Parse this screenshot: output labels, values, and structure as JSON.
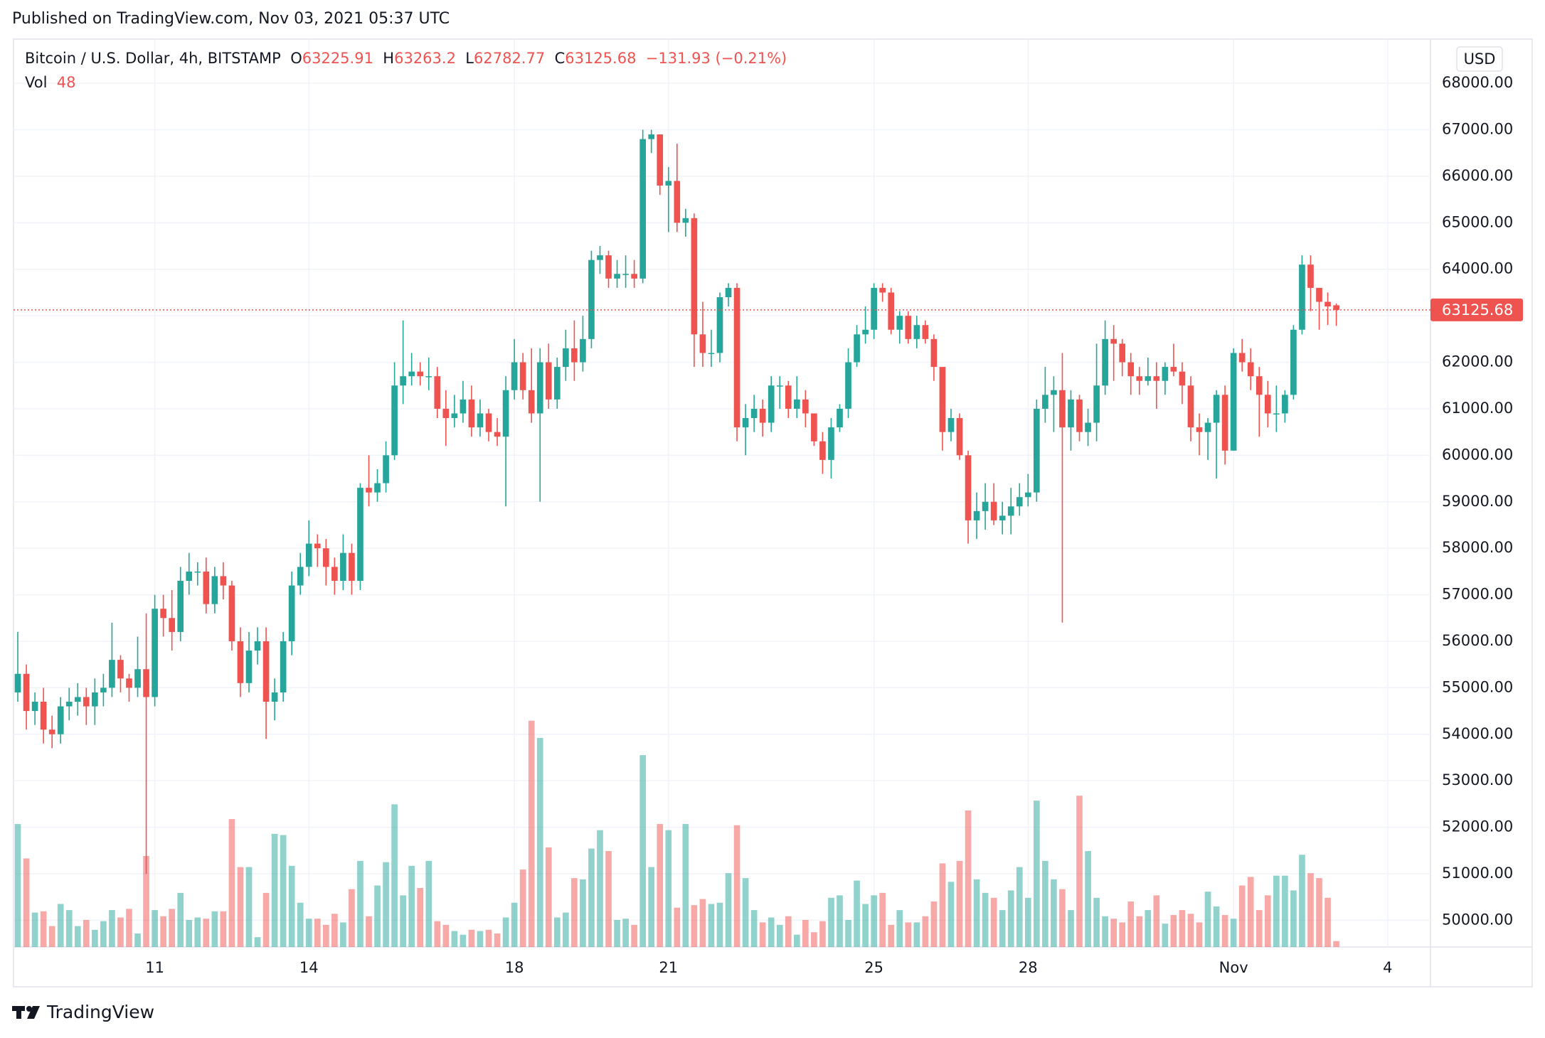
{
  "published": "Published on TradingView.com, Nov 03, 2021 05:37 UTC",
  "chart_data": {
    "type": "candlestick",
    "symbol": "Bitcoin / U.S. Dollar, 4h, BITSTAMP",
    "ohlc_labels": [
      "O",
      "H",
      "L",
      "C"
    ],
    "change": "−131.93 (−0.21%)",
    "volume_label": "Vol",
    "currency": "USD",
    "open": [
      54900,
      55300,
      54500,
      54700,
      54100,
      54000,
      54600,
      54700,
      54800,
      54600,
      54900,
      55000,
      55600,
      55200,
      55000,
      55400,
      54800,
      56700,
      56500,
      56200,
      57300,
      57500,
      57500,
      56800,
      57400,
      57200,
      56000,
      55100,
      55800,
      56000,
      54700,
      54900,
      56000,
      57200,
      57600,
      58100,
      58000,
      57600,
      57300,
      57900,
      57300,
      59300,
      59200,
      59400,
      60000,
      61500,
      61700,
      61800,
      61700,
      61700,
      61000,
      60800,
      60900,
      61200,
      60600,
      60900,
      60500,
      60400,
      61400,
      62000,
      61400,
      60900,
      62000,
      61200,
      61900,
      62300,
      62000,
      62500,
      64200,
      64300,
      63800,
      63900,
      63900,
      63800,
      66800,
      66900,
      65800,
      65900,
      65000,
      65100,
      62600,
      62200,
      62200,
      63400,
      63600,
      60600,
      60800,
      61000,
      60700,
      61500,
      61500,
      61000,
      61200,
      60900,
      60300,
      59900,
      60600,
      61000,
      62000,
      62600,
      62700,
      63600,
      63500,
      62700,
      63000,
      62500,
      62800,
      62500,
      61900,
      60500,
      60800,
      60000,
      58600,
      58800,
      59000,
      58600,
      58700,
      58900,
      59100,
      59200,
      61000,
      61300,
      61400,
      60600,
      61200,
      60500,
      60700,
      61500,
      62500,
      62400,
      62000,
      61700,
      61600,
      61700,
      61600,
      61900,
      61800,
      61500,
      60600,
      60500,
      60700,
      61300,
      60100,
      62200,
      62000,
      61700,
      61300,
      60900,
      60900,
      61300,
      62700,
      64100,
      63600,
      63300,
      63225.91
    ],
    "high": [
      56200,
      55500,
      54900,
      55000,
      54400,
      54800,
      55000,
      55100,
      55000,
      55200,
      55300,
      56400,
      55700,
      55300,
      56100,
      56600,
      57000,
      57000,
      57100,
      57600,
      57900,
      57700,
      57800,
      57600,
      57700,
      57300,
      56300,
      56200,
      56300,
      56300,
      55200,
      56200,
      57500,
      57900,
      58600,
      58300,
      58200,
      57800,
      58300,
      58100,
      59400,
      60000,
      59700,
      60300,
      62000,
      62900,
      62200,
      62000,
      62100,
      61900,
      61400,
      61300,
      61600,
      61500,
      61200,
      61000,
      60800,
      61700,
      62500,
      62200,
      62300,
      62300,
      62400,
      62100,
      62700,
      62900,
      63000,
      64400,
      64500,
      64400,
      64200,
      64300,
      64200,
      67000,
      67000,
      66900,
      66200,
      66700,
      65300,
      65200,
      63300,
      62700,
      63500,
      63700,
      63700,
      61100,
      61300,
      61200,
      61700,
      61700,
      61600,
      61700,
      61400,
      60900,
      60500,
      60800,
      61100,
      62300,
      62800,
      63200,
      63700,
      63700,
      63600,
      63100,
      63100,
      63000,
      62900,
      62600,
      61900,
      61000,
      60900,
      60100,
      59200,
      59400,
      59400,
      59000,
      59300,
      59400,
      59600,
      61200,
      61900,
      61700,
      62200,
      61400,
      61300,
      61000,
      62400,
      62900,
      62800,
      62500,
      62200,
      61900,
      62100,
      62000,
      62000,
      62400,
      62000,
      61700,
      60900,
      60800,
      61400,
      61500,
      62300,
      62500,
      62300,
      61900,
      61600,
      61500,
      61400,
      62800,
      64300,
      64300,
      63600,
      63500,
      63263.2
    ],
    "low": [
      54700,
      54100,
      54200,
      53800,
      53700,
      53800,
      54300,
      54400,
      54200,
      54200,
      54600,
      54800,
      54900,
      54700,
      54800,
      51000,
      54600,
      56100,
      55800,
      56000,
      57000,
      57200,
      56600,
      56600,
      56900,
      55800,
      54800,
      54900,
      55500,
      53900,
      54300,
      54700,
      55700,
      57000,
      57400,
      57600,
      57200,
      57000,
      57100,
      57000,
      57100,
      58900,
      59000,
      59200,
      59900,
      61100,
      61500,
      61500,
      61400,
      60800,
      60200,
      60600,
      60700,
      60400,
      60400,
      60300,
      60200,
      58900,
      61200,
      61200,
      60700,
      59000,
      61000,
      61000,
      61600,
      61600,
      61800,
      62300,
      63900,
      63600,
      63600,
      63600,
      63600,
      63700,
      66500,
      65600,
      64800,
      64800,
      64700,
      61900,
      61900,
      61900,
      62000,
      63200,
      60300,
      60000,
      60500,
      60400,
      60500,
      61000,
      60800,
      60800,
      60600,
      60200,
      59600,
      59500,
      60500,
      60800,
      61900,
      62400,
      62500,
      63300,
      62600,
      62400,
      62400,
      62300,
      62400,
      61600,
      60100,
      60300,
      59900,
      58100,
      58200,
      58400,
      58500,
      58300,
      58300,
      58700,
      58900,
      59000,
      60700,
      60500,
      56400,
      60100,
      60300,
      60200,
      60300,
      61300,
      61600,
      61700,
      61300,
      61300,
      61500,
      61000,
      61300,
      61700,
      61100,
      60300,
      60000,
      59900,
      59500,
      59800,
      60100,
      61800,
      61400,
      60400,
      60600,
      60500,
      60700,
      61200,
      62600,
      63100,
      62700,
      62800,
      62782.77
    ],
    "close": [
      55300,
      54500,
      54700,
      54100,
      54000,
      54600,
      54700,
      54800,
      54600,
      54900,
      55000,
      55600,
      55200,
      55000,
      55400,
      54800,
      56700,
      56500,
      56200,
      57300,
      57500,
      57500,
      56800,
      57400,
      57200,
      56000,
      55100,
      55800,
      56000,
      54700,
      54900,
      56000,
      57200,
      57600,
      58100,
      58000,
      57600,
      57300,
      57900,
      57300,
      59300,
      59200,
      59400,
      60000,
      61500,
      61700,
      61800,
      61700,
      61700,
      61000,
      60800,
      60900,
      61200,
      60600,
      60900,
      60500,
      60400,
      61400,
      62000,
      61400,
      60900,
      62000,
      61200,
      61900,
      62300,
      62000,
      62500,
      64200,
      64300,
      63800,
      63900,
      63900,
      63800,
      66800,
      66900,
      65800,
      65900,
      65000,
      65100,
      62600,
      62200,
      62200,
      63400,
      63600,
      60600,
      60800,
      61000,
      60700,
      61500,
      61500,
      61000,
      61200,
      60900,
      60300,
      59900,
      60600,
      61000,
      62000,
      62600,
      62700,
      63600,
      63500,
      62700,
      63000,
      62500,
      62800,
      62500,
      61900,
      60500,
      60800,
      60000,
      58600,
      58800,
      59000,
      58600,
      58700,
      58900,
      59100,
      59200,
      61000,
      61300,
      61400,
      60600,
      61200,
      60500,
      60700,
      61500,
      62500,
      62400,
      62000,
      61700,
      61600,
      61700,
      61600,
      61900,
      61800,
      61500,
      60600,
      60500,
      60700,
      61300,
      60100,
      62200,
      62000,
      61700,
      61300,
      60900,
      60900,
      61300,
      62700,
      64100,
      63600,
      63300,
      63200,
      63125.68
    ],
    "volume": [
      1000,
      720,
      280,
      290,
      170,
      350,
      300,
      170,
      220,
      140,
      210,
      300,
      240,
      310,
      110,
      740,
      300,
      250,
      310,
      440,
      220,
      240,
      230,
      290,
      290,
      1040,
      650,
      650,
      80,
      440,
      920,
      910,
      660,
      360,
      230,
      230,
      180,
      270,
      200,
      470,
      700,
      250,
      500,
      690,
      1160,
      420,
      660,
      480,
      700,
      210,
      180,
      130,
      100,
      140,
      130,
      140,
      110,
      240,
      360,
      630,
      1840,
      1700,
      810,
      240,
      280,
      560,
      550,
      800,
      950,
      780,
      220,
      230,
      180,
      1560,
      650,
      1000,
      950,
      320,
      1000,
      340,
      390,
      350,
      360,
      600,
      990,
      560,
      300,
      200,
      240,
      180,
      250,
      100,
      220,
      120,
      210,
      400,
      420,
      220,
      540,
      350,
      420,
      440,
      180,
      300,
      200,
      200,
      250,
      370,
      680,
      530,
      700,
      1110,
      550,
      440,
      400,
      300,
      460,
      650,
      400,
      1190,
      700,
      550,
      470,
      300,
      1230,
      780,
      400,
      250,
      230,
      200,
      370,
      250,
      300,
      420,
      190,
      260,
      300,
      270,
      200,
      450,
      330,
      260,
      230,
      500,
      570,
      300,
      420,
      580,
      580,
      460,
      750,
      600,
      560,
      400,
      48
    ],
    "up_color": "#26a69a",
    "down_color": "#ef5350",
    "ylim": [
      49425,
      68950
    ],
    "yticks": [
      {
        "value": 50000,
        "label": "50000.00"
      },
      {
        "value": 51000,
        "label": "51000.00"
      },
      {
        "value": 52000,
        "label": "52000.00"
      },
      {
        "value": 53000,
        "label": "53000.00"
      },
      {
        "value": 54000,
        "label": "54000.00"
      },
      {
        "value": 55000,
        "label": "55000.00"
      },
      {
        "value": 56000,
        "label": "56000.00"
      },
      {
        "value": 57000,
        "label": "57000.00"
      },
      {
        "value": 58000,
        "label": "58000.00"
      },
      {
        "value": 59000,
        "label": "59000.00"
      },
      {
        "value": 60000,
        "label": "60000.00"
      },
      {
        "value": 61000,
        "label": "61000.00"
      },
      {
        "value": 62000,
        "label": "62000.00"
      },
      {
        "value": 63000,
        "label": "63000.00"
      },
      {
        "value": 64000,
        "label": "64000.00"
      },
      {
        "value": 65000,
        "label": "65000.00"
      },
      {
        "value": 66000,
        "label": "66000.00"
      },
      {
        "value": 67000,
        "label": "67000.00"
      },
      {
        "value": 68000,
        "label": "68000.00"
      }
    ],
    "xlim": [
      -0.5,
      165
    ],
    "xticks": [
      {
        "value": 16,
        "label": "11"
      },
      {
        "value": 34,
        "label": "14"
      },
      {
        "value": 58,
        "label": "18"
      },
      {
        "value": 76,
        "label": "21"
      },
      {
        "value": 100,
        "label": "25"
      },
      {
        "value": 118,
        "label": "28"
      },
      {
        "value": 142,
        "label": "Nov"
      },
      {
        "value": 160,
        "label": "4"
      }
    ],
    "volume_lim": [
      0,
      2000
    ],
    "grid": true
  },
  "footer": {
    "brand": "TradingView"
  }
}
